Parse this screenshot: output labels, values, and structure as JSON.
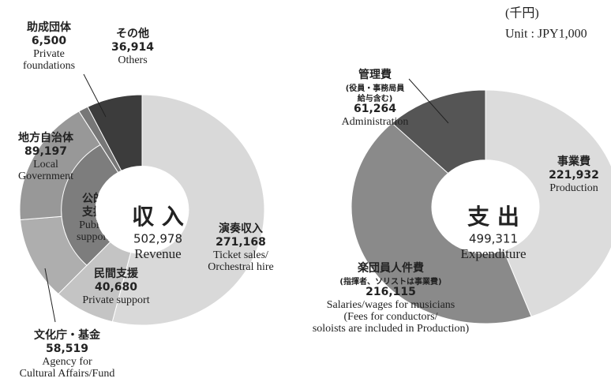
{
  "header": {
    "unit_ja": "(千円)",
    "unit_en": "Unit : JPY1,000"
  },
  "chart_data": [
    {
      "type": "pie",
      "title": "収 入",
      "total": 502978,
      "total_label": "502,978",
      "subtitle": "Revenue",
      "slices": [
        {
          "name": [
            "演奏収入"
          ],
          "value": 271168,
          "value_label": "271,168",
          "name_en": [
            "Ticket sales/",
            "Orchestral hire"
          ],
          "color": "#d9d9d9"
        },
        {
          "name": [
            "民間支援"
          ],
          "value": 40680,
          "value_label": "40,680",
          "name_en": [
            "Private support"
          ],
          "color": "#c4c4c4"
        },
        {
          "name": [
            "文化庁・基金"
          ],
          "value": 58519,
          "value_label": "58,519",
          "name_en": [
            "Agency for",
            "Cultural Affairs/Fund"
          ],
          "color": "#aeaeae"
        },
        {
          "name": [
            "地方自治体"
          ],
          "value": 89197,
          "value_label": "89,197",
          "name_en": [
            "Local",
            "Government"
          ],
          "color": "#989898"
        },
        {
          "name": [
            "助成団体"
          ],
          "value": 6500,
          "value_label": "6,500",
          "name_en": [
            "Private",
            "foundations"
          ],
          "color": "#777777"
        },
        {
          "name": [
            "その他"
          ],
          "value": 36914,
          "value_label": "36,914",
          "name_en": [
            "Others"
          ],
          "color": "#3c3c3c"
        }
      ],
      "groups": [
        {
          "name": [
            "公的",
            "支援"
          ],
          "name_en": [
            "Public",
            "support"
          ],
          "color": "#7d7d7d"
        }
      ]
    },
    {
      "type": "pie",
      "title": "支 出",
      "total": 499311,
      "total_label": "499,311",
      "subtitle": "Expenditure",
      "slices": [
        {
          "name": [
            "事業費"
          ],
          "value": 221932,
          "value_label": "221,932",
          "name_en": [
            "Production"
          ],
          "color": "#dcdcdc"
        },
        {
          "name": [
            "楽団員人件費"
          ],
          "note": [
            "(指揮者、ソリストは事業費)"
          ],
          "value": 216115,
          "value_label": "216,115",
          "name_en": [
            "Salaries/wages for musicians",
            "(Fees for conductors/",
            "soloists are included in Production)"
          ],
          "color": "#8a8a8a"
        },
        {
          "name": [
            "管理費"
          ],
          "note": [
            "(役員・事務局員",
            "給与含む)"
          ],
          "value": 61264,
          "value_label": "61,264",
          "name_en": [
            "Administration"
          ],
          "color": "#555555"
        }
      ]
    }
  ]
}
